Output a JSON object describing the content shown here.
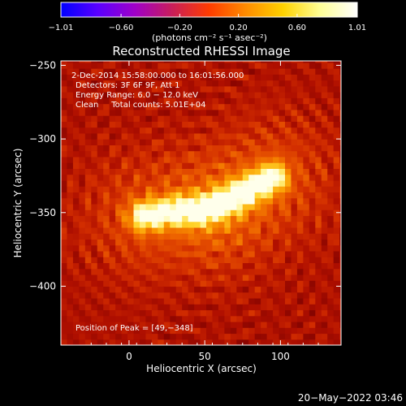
{
  "colorbar": {
    "tick_labels": [
      "−1.01",
      "−0.60",
      "−0.20",
      "0.20",
      "0.60",
      "1.01"
    ],
    "tick_values": [
      -1.01,
      -0.6,
      -0.2,
      0.2,
      0.6,
      1.01
    ],
    "range": [
      -1.01,
      1.01
    ],
    "unit_label": "(photons cm⁻² s⁻¹ asec⁻²)",
    "colormap": [
      "#0000ff",
      "#5a00ff",
      "#a000c8",
      "#c81e5a",
      "#ff3c00",
      "#ff8c00",
      "#ffd200",
      "#ffff96",
      "#ffffff"
    ]
  },
  "chart_data": {
    "type": "heatmap",
    "title": "Reconstructed RHESSI Image",
    "xlabel": "Heliocentric X (arcsec)",
    "ylabel": "Heliocentric Y (arcsec)",
    "xlim": [
      -45,
      140
    ],
    "ylim": [
      -440,
      -247
    ],
    "xticks": [
      0,
      50,
      100
    ],
    "yticks": [
      -250,
      -300,
      -350,
      -400
    ],
    "grid": false,
    "annotations": {
      "time_range": "2-Dec-2014 15:58:00.000 to 16:01:56.000",
      "detectors": "Detectors: 3F 6F 9F, Att 1",
      "energy": "Energy Range: 6.0 − 12.0 keV",
      "clean": "Clean     Total counts: 5.01E+04",
      "peak": "Position of Peak = [49,−348]"
    },
    "source": {
      "peak": [
        49,
        -348
      ],
      "ridge": [
        [
          10,
          -352
        ],
        [
          30,
          -349
        ],
        [
          49,
          -348
        ],
        [
          65,
          -342
        ],
        [
          80,
          -334
        ],
        [
          95,
          -326
        ]
      ],
      "peak_value": 1.01,
      "background_value": 0.3
    }
  },
  "footer": {
    "timestamp": "20−May−2022 03:46"
  }
}
